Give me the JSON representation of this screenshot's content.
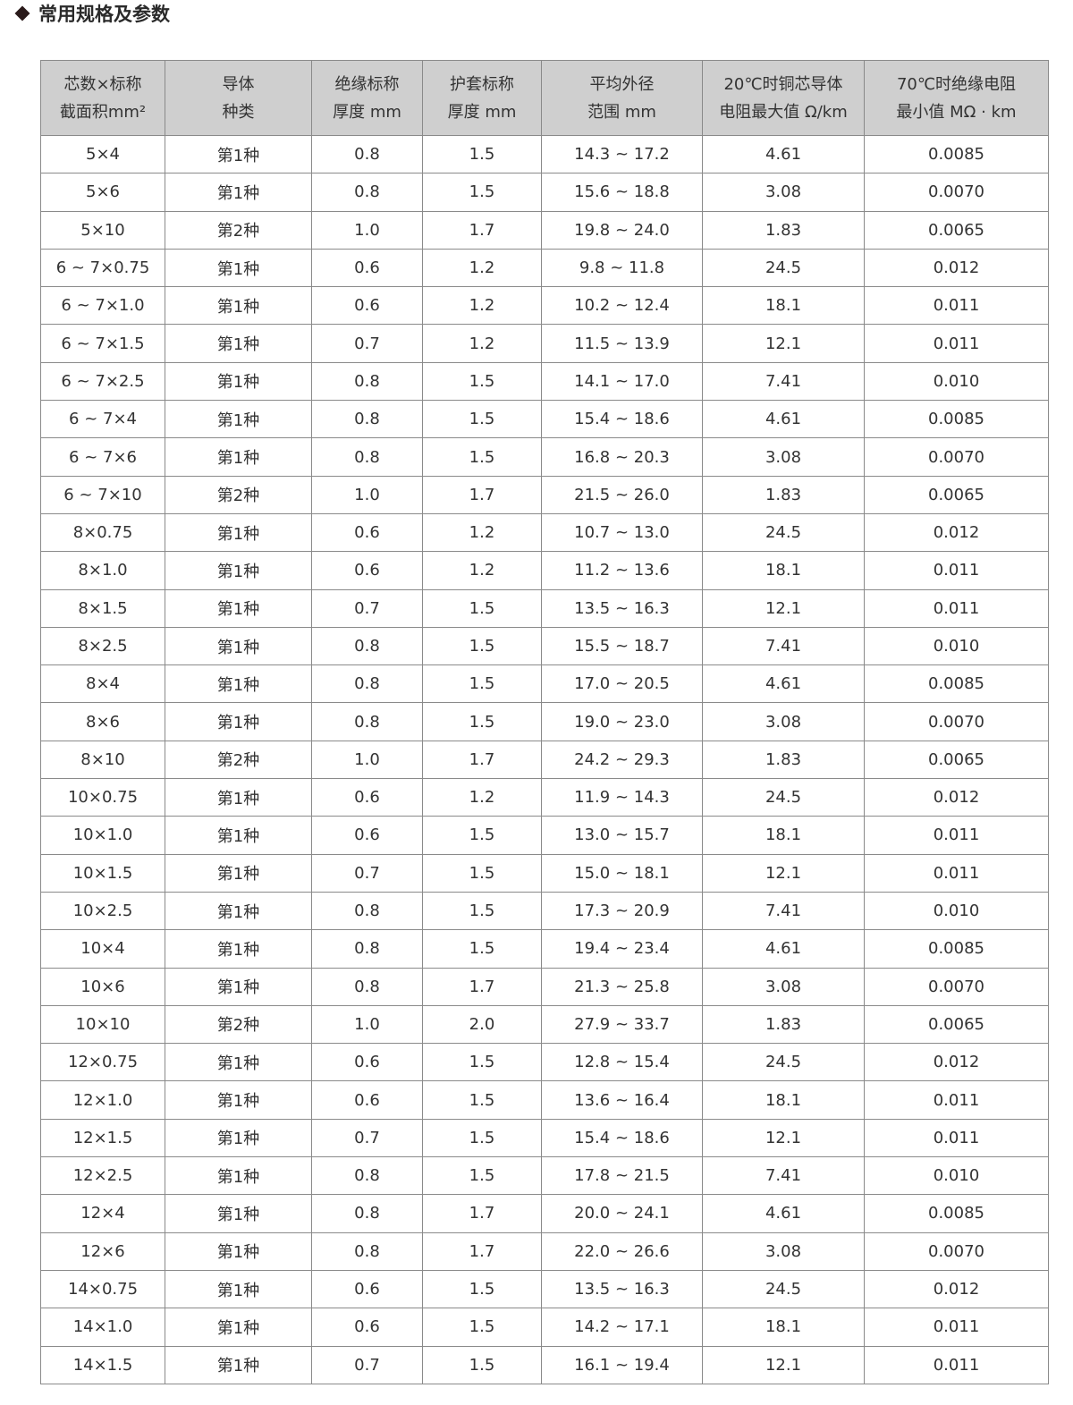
{
  "title": "常用规格及参数",
  "table": {
    "headers": [
      [
        "芯数×标称",
        "截面积mm²"
      ],
      [
        "导体",
        "种类"
      ],
      [
        "绝缘标称",
        "厚度 mm"
      ],
      [
        "护套标称",
        "厚度 mm"
      ],
      [
        "平均外径",
        "范围 mm"
      ],
      [
        "20℃时铜芯导体",
        "电阻最大值 Ω/km"
      ],
      [
        "70℃时绝缘电阻",
        "最小值 MΩ · km"
      ]
    ],
    "rows": [
      [
        "5×4",
        "第1种",
        "0.8",
        "1.5",
        "14.3 ~ 17.2",
        "4.61",
        "0.0085"
      ],
      [
        "5×6",
        "第1种",
        "0.8",
        "1.5",
        "15.6 ~ 18.8",
        "3.08",
        "0.0070"
      ],
      [
        "5×10",
        "第2种",
        "1.0",
        "1.7",
        "19.8 ~ 24.0",
        "1.83",
        "0.0065"
      ],
      [
        "6 ~ 7×0.75",
        "第1种",
        "0.6",
        "1.2",
        "9.8 ~ 11.8",
        "24.5",
        "0.012"
      ],
      [
        "6 ~ 7×1.0",
        "第1种",
        "0.6",
        "1.2",
        "10.2 ~ 12.4",
        "18.1",
        "0.011"
      ],
      [
        "6 ~ 7×1.5",
        "第1种",
        "0.7",
        "1.2",
        "11.5 ~ 13.9",
        "12.1",
        "0.011"
      ],
      [
        "6 ~ 7×2.5",
        "第1种",
        "0.8",
        "1.5",
        "14.1 ~ 17.0",
        "7.41",
        "0.010"
      ],
      [
        "6 ~ 7×4",
        "第1种",
        "0.8",
        "1.5",
        "15.4 ~ 18.6",
        "4.61",
        "0.0085"
      ],
      [
        "6 ~ 7×6",
        "第1种",
        "0.8",
        "1.5",
        "16.8 ~ 20.3",
        "3.08",
        "0.0070"
      ],
      [
        "6 ~ 7×10",
        "第2种",
        "1.0",
        "1.7",
        "21.5 ~ 26.0",
        "1.83",
        "0.0065"
      ],
      [
        "8×0.75",
        "第1种",
        "0.6",
        "1.2",
        "10.7 ~ 13.0",
        "24.5",
        "0.012"
      ],
      [
        "8×1.0",
        "第1种",
        "0.6",
        "1.2",
        "11.2 ~ 13.6",
        "18.1",
        "0.011"
      ],
      [
        "8×1.5",
        "第1种",
        "0.7",
        "1.5",
        "13.5 ~ 16.3",
        "12.1",
        "0.011"
      ],
      [
        "8×2.5",
        "第1种",
        "0.8",
        "1.5",
        "15.5 ~ 18.7",
        "7.41",
        "0.010"
      ],
      [
        "8×4",
        "第1种",
        "0.8",
        "1.5",
        "17.0 ~ 20.5",
        "4.61",
        "0.0085"
      ],
      [
        "8×6",
        "第1种",
        "0.8",
        "1.5",
        "19.0 ~ 23.0",
        "3.08",
        "0.0070"
      ],
      [
        "8×10",
        "第2种",
        "1.0",
        "1.7",
        "24.2 ~ 29.3",
        "1.83",
        "0.0065"
      ],
      [
        "10×0.75",
        "第1种",
        "0.6",
        "1.2",
        "11.9 ~ 14.3",
        "24.5",
        "0.012"
      ],
      [
        "10×1.0",
        "第1种",
        "0.6",
        "1.5",
        "13.0 ~ 15.7",
        "18.1",
        "0.011"
      ],
      [
        "10×1.5",
        "第1种",
        "0.7",
        "1.5",
        "15.0 ~ 18.1",
        "12.1",
        "0.011"
      ],
      [
        "10×2.5",
        "第1种",
        "0.8",
        "1.5",
        "17.3 ~ 20.9",
        "7.41",
        "0.010"
      ],
      [
        "10×4",
        "第1种",
        "0.8",
        "1.5",
        "19.4 ~ 23.4",
        "4.61",
        "0.0085"
      ],
      [
        "10×6",
        "第1种",
        "0.8",
        "1.7",
        "21.3 ~ 25.8",
        "3.08",
        "0.0070"
      ],
      [
        "10×10",
        "第2种",
        "1.0",
        "2.0",
        "27.9 ~ 33.7",
        "1.83",
        "0.0065"
      ],
      [
        "12×0.75",
        "第1种",
        "0.6",
        "1.5",
        "12.8 ~ 15.4",
        "24.5",
        "0.012"
      ],
      [
        "12×1.0",
        "第1种",
        "0.6",
        "1.5",
        "13.6 ~ 16.4",
        "18.1",
        "0.011"
      ],
      [
        "12×1.5",
        "第1种",
        "0.7",
        "1.5",
        "15.4 ~ 18.6",
        "12.1",
        "0.011"
      ],
      [
        "12×2.5",
        "第1种",
        "0.8",
        "1.5",
        "17.8 ~ 21.5",
        "7.41",
        "0.010"
      ],
      [
        "12×4",
        "第1种",
        "0.8",
        "1.7",
        "20.0 ~ 24.1",
        "4.61",
        "0.0085"
      ],
      [
        "12×6",
        "第1种",
        "0.8",
        "1.7",
        "22.0 ~ 26.6",
        "3.08",
        "0.0070"
      ],
      [
        "14×0.75",
        "第1种",
        "0.6",
        "1.5",
        "13.5 ~ 16.3",
        "24.5",
        "0.012"
      ],
      [
        "14×1.0",
        "第1种",
        "0.6",
        "1.5",
        "14.2 ~ 17.1",
        "18.1",
        "0.011"
      ],
      [
        "14×1.5",
        "第1种",
        "0.7",
        "1.5",
        "16.1 ~ 19.4",
        "12.1",
        "0.011"
      ]
    ]
  },
  "colors": {
    "header_bg": "#cfcfcf",
    "border": "#8a8a8a",
    "text": "#333333"
  },
  "icons": {
    "bullet": "diamond-icon"
  }
}
